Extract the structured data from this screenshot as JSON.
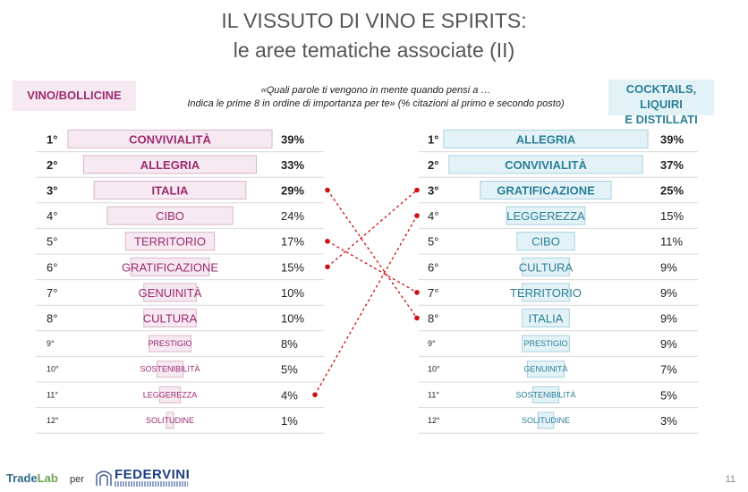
{
  "header": {
    "title_line1": "IL VISSUTO DI VINO E SPIRITS:",
    "title_line2": "le aree tematiche associate (II)"
  },
  "question": {
    "line1": "«Quali parole ti vengono in mente quando pensi a …",
    "line2": "Indica le prime 8 in ordine di importanza per te» (% citazioni al primo e secondo posto)"
  },
  "colors": {
    "left_text": "#9c2a6e",
    "left_fill": "#f6e9f1",
    "left_stroke": "#d9b7ca",
    "right_text": "#2a7f98",
    "right_fill": "#e3f2f6",
    "right_stroke": "#a9d2df",
    "connector": "#cc1111"
  },
  "chart_data": [
    {
      "type": "bar",
      "title": "VINO/BOLLICINE",
      "ranks": [
        "1°",
        "2°",
        "3°",
        "4°",
        "5°",
        "6°",
        "7°",
        "8°",
        "9°",
        "10°",
        "11°",
        "12°"
      ],
      "categories": [
        "CONVIVIALITÀ",
        "ALLEGRIA",
        "ITALIA",
        "CIBO",
        "TERRITORIO",
        "GRATIFICAZIONE",
        "GENUINITÀ",
        "CULTURA",
        "PRESTIGIO",
        "SOSTENIBILITÀ",
        "LEGGEREZZA",
        "SOLITUDINE"
      ],
      "values": [
        39,
        33,
        29,
        24,
        17,
        15,
        10,
        10,
        8,
        5,
        4,
        1
      ],
      "value_labels": [
        "39%",
        "33%",
        "29%",
        "24%",
        "17%",
        "15%",
        "10%",
        "10%",
        "8%",
        "5%",
        "4%",
        "1%"
      ]
    },
    {
      "type": "bar",
      "title": "COCKTAILS, LIQUIRI E DISTILLATI",
      "title_lines": [
        "COCKTAILS, LIQUIRI",
        "E DISTILLATI"
      ],
      "ranks": [
        "1°",
        "2°",
        "3°",
        "4°",
        "5°",
        "6°",
        "7°",
        "8°",
        "9°",
        "10°",
        "11°",
        "12°"
      ],
      "categories": [
        "ALLEGRIA",
        "CONVIVIALITÀ",
        "GRATIFICAZIONE",
        "LEGGEREZZA",
        "CIBO",
        "CULTURA",
        "TERRITORIO",
        "ITALIA",
        "PRESTIGIO",
        "GENUINITÀ",
        "SOSTENIBILITÀ",
        "SOLITUDINE"
      ],
      "values": [
        39,
        37,
        25,
        15,
        11,
        9,
        9,
        9,
        9,
        7,
        5,
        3
      ],
      "value_labels": [
        "39%",
        "37%",
        "25%",
        "15%",
        "11%",
        "9%",
        "9%",
        "9%",
        "9%",
        "7%",
        "5%",
        "3%"
      ]
    }
  ],
  "connections": [
    {
      "from_rank": 3,
      "to_rank": 8
    },
    {
      "from_rank": 5,
      "to_rank": 7
    },
    {
      "from_rank": 6,
      "to_rank": 3
    },
    {
      "from_rank": 11,
      "to_rank": 4
    }
  ],
  "footer": {
    "trade": "Trade",
    "lab": "Lab",
    "per": "per",
    "federvini": "FEDERVINI",
    "page_number": "11"
  }
}
